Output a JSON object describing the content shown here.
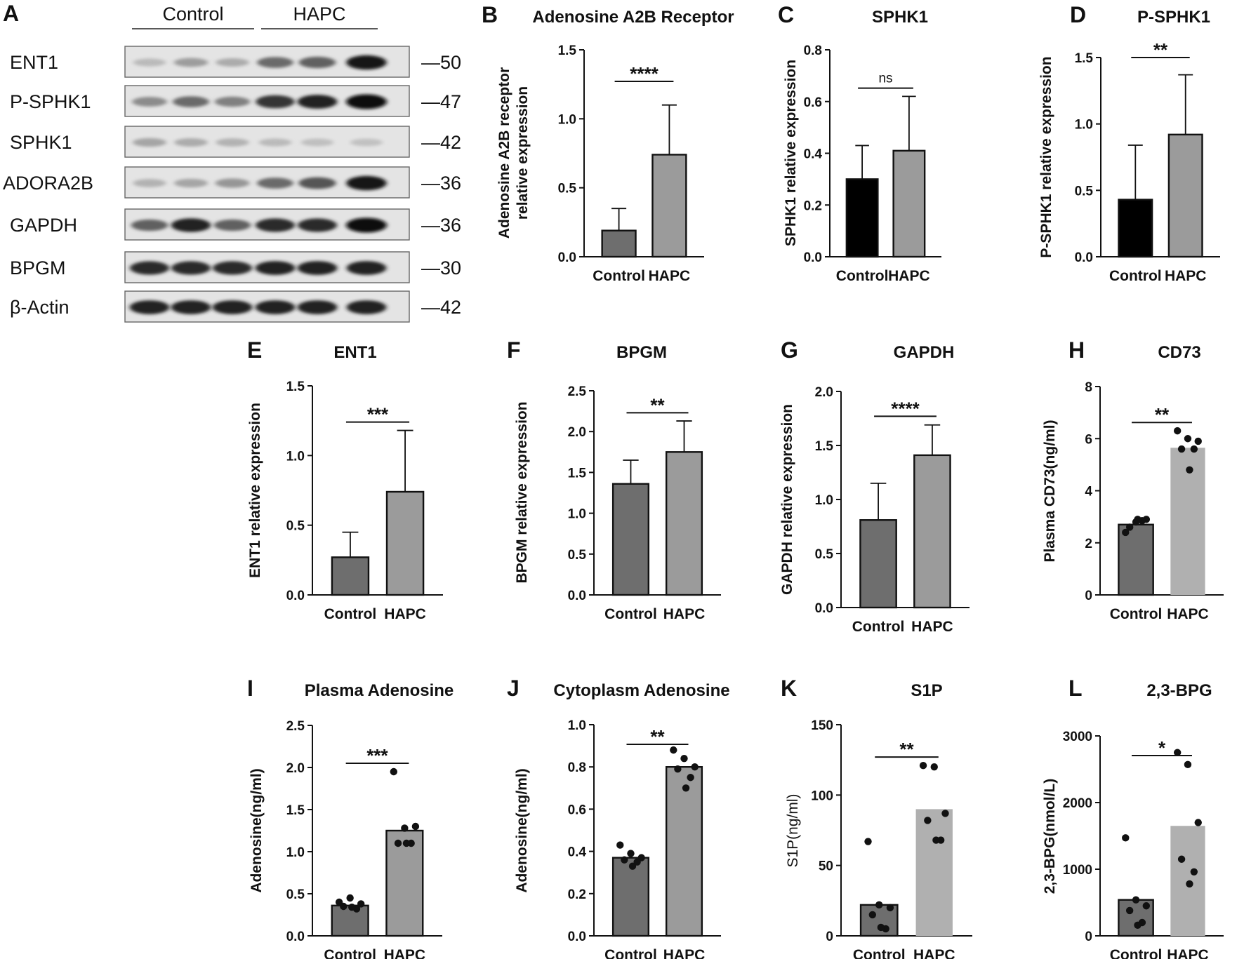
{
  "panel_letters": {
    "A": "A",
    "B": "B",
    "C": "C",
    "D": "D",
    "E": "E",
    "F": "F",
    "G": "G",
    "H": "H",
    "I": "I",
    "J": "J",
    "K": "K",
    "L": "L"
  },
  "western_blot": {
    "groups": [
      "Control",
      "HAPC"
    ],
    "rows": [
      {
        "protein": "ENT1",
        "kda": "—50",
        "intensities": [
          0.18,
          0.32,
          0.25,
          0.55,
          0.6,
          0.95
        ]
      },
      {
        "protein": "P-SPHK1",
        "kda": "—47",
        "intensities": [
          0.4,
          0.55,
          0.45,
          0.8,
          0.9,
          1.0
        ]
      },
      {
        "protein": "SPHK1",
        "kda": "—42",
        "intensities": [
          0.28,
          0.25,
          0.22,
          0.18,
          0.16,
          0.15
        ]
      },
      {
        "protein": "ADORA2B",
        "kda": "—36",
        "intensities": [
          0.22,
          0.28,
          0.35,
          0.55,
          0.65,
          0.95
        ]
      },
      {
        "protein": "GAPDH",
        "kda": "—36",
        "intensities": [
          0.6,
          0.88,
          0.6,
          0.85,
          0.85,
          1.0
        ]
      },
      {
        "protein": "BPGM",
        "kda": "—30",
        "intensities": [
          0.85,
          0.85,
          0.85,
          0.9,
          0.9,
          0.9
        ]
      },
      {
        "protein": "β-Actin",
        "kda": "—42",
        "intensities": [
          0.9,
          0.9,
          0.9,
          0.9,
          0.9,
          0.9
        ]
      }
    ]
  },
  "chart_data": [
    {
      "id": "B",
      "type": "bar",
      "title": "Adenosine A2B Receptor",
      "ylabel": [
        "Adenosine A2B receptor",
        "relative expression"
      ],
      "categories": [
        "Control",
        "HAPC"
      ],
      "values": [
        0.19,
        0.74
      ],
      "errors": [
        0.16,
        0.36
      ],
      "ylim": [
        0,
        1.5
      ],
      "yticks": [
        "0.0",
        "0.5",
        "1.0",
        "1.5"
      ],
      "ytick_values": [
        0,
        0.5,
        1.0,
        1.5
      ],
      "significance": "****",
      "colors": [
        "#6e6e6e",
        "#9b9b9b"
      ]
    },
    {
      "id": "C",
      "type": "bar",
      "title": "SPHK1",
      "ylabel": [
        "SPHK1 relative expression"
      ],
      "categories": [
        "Control",
        "HAPC"
      ],
      "values": [
        0.3,
        0.41
      ],
      "errors": [
        0.13,
        0.21
      ],
      "ylim": [
        0,
        0.8
      ],
      "yticks": [
        "0.0",
        "0.2",
        "0.4",
        "0.6",
        "0.8"
      ],
      "ytick_values": [
        0,
        0.2,
        0.4,
        0.6,
        0.8
      ],
      "significance": "ns",
      "colors": [
        "#000000",
        "#9b9b9b"
      ]
    },
    {
      "id": "D",
      "type": "bar",
      "title": "P-SPHK1",
      "ylabel": [
        "P-SPHK1 relative expression"
      ],
      "categories": [
        "Control",
        "HAPC"
      ],
      "values": [
        0.43,
        0.92
      ],
      "errors": [
        0.41,
        0.45
      ],
      "ylim": [
        0,
        1.5
      ],
      "yticks": [
        "0.0",
        "0.5",
        "1.0",
        "1.5"
      ],
      "ytick_values": [
        0,
        0.5,
        1.0,
        1.5
      ],
      "significance": "**",
      "colors": [
        "#000000",
        "#9b9b9b"
      ]
    },
    {
      "id": "E",
      "type": "bar",
      "title": "ENT1",
      "ylabel": [
        "ENT1 relative expression"
      ],
      "categories": [
        "Control",
        "HAPC"
      ],
      "values": [
        0.27,
        0.74
      ],
      "errors": [
        0.18,
        0.44
      ],
      "ylim": [
        0,
        1.5
      ],
      "yticks": [
        "0.0",
        "0.5",
        "1.0",
        "1.5"
      ],
      "ytick_values": [
        0,
        0.5,
        1.0,
        1.5
      ],
      "significance": "***",
      "colors": [
        "#6e6e6e",
        "#9b9b9b"
      ]
    },
    {
      "id": "F",
      "type": "bar",
      "title": "BPGM",
      "ylabel": [
        "BPGM relative expression"
      ],
      "categories": [
        "Control",
        "HAPC"
      ],
      "values": [
        1.36,
        1.75
      ],
      "errors": [
        0.29,
        0.38
      ],
      "ylim": [
        0,
        2.5
      ],
      "yticks": [
        "0.0",
        "0.5",
        "1.0",
        "1.5",
        "2.0",
        "2.5"
      ],
      "ytick_values": [
        0,
        0.5,
        1.0,
        1.5,
        2.0,
        2.5
      ],
      "significance": "**",
      "colors": [
        "#6e6e6e",
        "#9b9b9b"
      ]
    },
    {
      "id": "G",
      "type": "bar",
      "title": "GAPDH",
      "ylabel": [
        "GAPDH relative expression"
      ],
      "categories": [
        "Control",
        "HAPC"
      ],
      "values": [
        0.81,
        1.41
      ],
      "errors": [
        0.34,
        0.28
      ],
      "ylim": [
        0,
        2.0
      ],
      "yticks": [
        "0.0",
        "0.5",
        "1.0",
        "1.5",
        "2.0"
      ],
      "ytick_values": [
        0,
        0.5,
        1.0,
        1.5,
        2.0
      ],
      "significance": "****",
      "colors": [
        "#6e6e6e",
        "#9b9b9b"
      ]
    },
    {
      "id": "H",
      "type": "bar",
      "title": "CD73",
      "ylabel": [
        "Plasma CD73(ng/ml)"
      ],
      "categories": [
        "Control",
        "HAPC"
      ],
      "values": [
        2.7,
        5.65
      ],
      "points": [
        [
          2.4,
          2.8,
          2.9,
          2.6,
          2.85,
          2.9
        ],
        [
          6.3,
          6.0,
          5.9,
          5.6,
          5.6,
          4.8
        ]
      ],
      "ylim": [
        0,
        8
      ],
      "yticks": [
        "0",
        "2",
        "4",
        "6",
        "8"
      ],
      "ytick_values": [
        0,
        2,
        4,
        6,
        8
      ],
      "significance": "**",
      "colors": [
        "#6e6e6e",
        "#b0b0b0"
      ]
    },
    {
      "id": "I",
      "type": "bar",
      "title": "Plasma Adenosine",
      "ylabel": [
        "Adenosine(ng/ml)"
      ],
      "categories": [
        "Control",
        "HAPC"
      ],
      "values": [
        0.36,
        1.25
      ],
      "points": [
        [
          0.4,
          0.45,
          0.38,
          0.35,
          0.32,
          0.34
        ],
        [
          1.95,
          1.28,
          1.3,
          1.1,
          1.1,
          1.1
        ]
      ],
      "ylim": [
        0,
        2.5
      ],
      "yticks": [
        "0.0",
        "0.5",
        "1.0",
        "1.5",
        "2.0",
        "2.5"
      ],
      "ytick_values": [
        0,
        0.5,
        1.0,
        1.5,
        2.0,
        2.5
      ],
      "significance": "***",
      "colors": [
        "#6e6e6e",
        "#9b9b9b"
      ]
    },
    {
      "id": "J",
      "type": "bar",
      "title": "Cytoplasm Adenosine",
      "ylabel": [
        "Adenosine(ng/ml)"
      ],
      "categories": [
        "Control",
        "HAPC"
      ],
      "values": [
        0.37,
        0.8
      ],
      "points": [
        [
          0.43,
          0.39,
          0.37,
          0.36,
          0.35,
          0.33
        ],
        [
          0.88,
          0.84,
          0.8,
          0.79,
          0.75,
          0.7
        ]
      ],
      "ylim": [
        0,
        1.0
      ],
      "yticks": [
        "0.0",
        "0.2",
        "0.4",
        "0.6",
        "0.8",
        "1.0"
      ],
      "ytick_values": [
        0,
        0.2,
        0.4,
        0.6,
        0.8,
        1.0
      ],
      "significance": "**",
      "colors": [
        "#6e6e6e",
        "#9b9b9b"
      ]
    },
    {
      "id": "K",
      "type": "bar",
      "title": "S1P",
      "ylabel": [
        "S1P(ng/ml)"
      ],
      "categories": [
        "Control",
        "HAPC"
      ],
      "values": [
        22,
        90
      ],
      "points": [
        [
          67,
          22,
          20,
          15,
          5,
          6
        ],
        [
          121,
          120,
          87,
          82,
          68,
          68
        ]
      ],
      "ylim": [
        0,
        150
      ],
      "yticks": [
        "0",
        "50",
        "100",
        "150"
      ],
      "ytick_values": [
        0,
        50,
        100,
        150
      ],
      "significance": "**",
      "colors": [
        "#6e6e6e",
        "#b0b0b0"
      ]
    },
    {
      "id": "L",
      "type": "bar",
      "title": "2,3-BPG",
      "ylabel": [
        "2,3-BPG(nmol/L)"
      ],
      "categories": [
        "Control",
        "HAPC"
      ],
      "values": [
        540,
        1650
      ],
      "points": [
        [
          1470,
          540,
          450,
          380,
          200,
          160
        ],
        [
          2750,
          2570,
          1700,
          1150,
          960,
          780
        ]
      ],
      "ylim": [
        0,
        3000
      ],
      "yticks": [
        "0",
        "1000",
        "2000",
        "3000"
      ],
      "ytick_values": [
        0,
        1000,
        2000,
        3000
      ],
      "significance": "*",
      "colors": [
        "#6e6e6e",
        "#b0b0b0"
      ]
    }
  ]
}
